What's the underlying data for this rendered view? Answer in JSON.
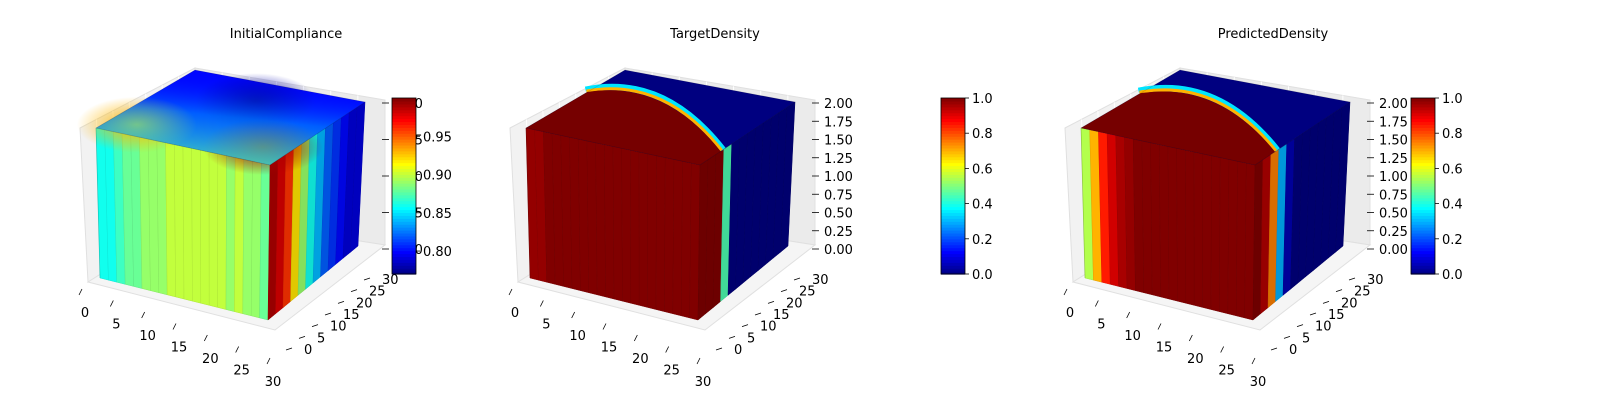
{
  "chart_data": [
    {
      "type": "heatmap",
      "title": "InitialCompliance",
      "colormap": "jet",
      "x_ticks": [
        "0",
        "5",
        "10",
        "15",
        "20",
        "25",
        "30"
      ],
      "y_ticks": [
        "0",
        "5",
        "10",
        "15",
        "20",
        "25",
        "30"
      ],
      "z_ticks": [
        "0.80",
        "0.85",
        "0.90",
        "0.95",
        "1.00"
      ],
      "colorbar": {
        "min": 0.77,
        "max": 1.0,
        "ticks": [
          "0.80",
          "0.85",
          "0.90",
          "0.95"
        ]
      },
      "faces": {
        "front_stripes": [
          0.86,
          0.86,
          0.87,
          0.88,
          0.88,
          0.89,
          0.89,
          0.89,
          0.9,
          0.9,
          0.9,
          0.9,
          0.9,
          0.9,
          0.9,
          0.89,
          0.9,
          0.89,
          0.89,
          0.88
        ],
        "side_stripes": [
          0.99,
          0.98,
          0.96,
          0.92,
          0.89,
          0.86,
          0.84,
          0.82,
          0.81,
          0.8,
          0.79,
          0.79
        ],
        "top_base": 0.8,
        "top_spots": [
          {
            "u": 0.15,
            "v": 0.15,
            "value": 0.93
          },
          {
            "u": 0.85,
            "v": 0.2,
            "value": 0.99
          },
          {
            "u": 0.5,
            "v": 0.75,
            "value": 0.78
          }
        ]
      }
    },
    {
      "type": "heatmap",
      "title": "TargetDensity",
      "colormap": "jet",
      "x_ticks": [
        "0",
        "5",
        "10",
        "15",
        "20",
        "25",
        "30"
      ],
      "y_ticks": [
        "0",
        "5",
        "10",
        "15",
        "20",
        "25",
        "30"
      ],
      "z_ticks": [
        "0.00",
        "0.25",
        "0.50",
        "0.75",
        "1.00",
        "1.25",
        "1.50",
        "1.75",
        "2.00"
      ],
      "colorbar": {
        "min": 0.0,
        "max": 1.0,
        "ticks": [
          "0.0",
          "0.2",
          "0.4",
          "0.6",
          "0.8",
          "1.0"
        ]
      },
      "faces": {
        "front_stripes": [
          0.98,
          0.98,
          1.0,
          1.0,
          1.0,
          1.0,
          1.0,
          1.0,
          1.0,
          1.0,
          1.0,
          1.0,
          1.0,
          1.0,
          1.0,
          1.0,
          1.0,
          1.0,
          1.0,
          1.0
        ],
        "side_stripes": [
          1.0,
          1.0,
          1.0,
          0.45,
          0.0,
          0.0,
          0.0,
          0.0,
          0.0,
          0.0,
          0.0,
          0.0
        ],
        "top_base": 0.0,
        "solid_fraction": 0.62
      }
    },
    {
      "type": "heatmap",
      "title": "PredictedDensity",
      "colormap": "jet",
      "x_ticks": [
        "0",
        "5",
        "10",
        "15",
        "20",
        "25",
        "30"
      ],
      "y_ticks": [
        "0",
        "5",
        "10",
        "15",
        "20",
        "25",
        "30"
      ],
      "z_ticks": [
        "0.00",
        "0.25",
        "0.50",
        "0.75",
        "1.00",
        "1.25",
        "1.50",
        "1.75",
        "2.00"
      ],
      "colorbar": {
        "min": 0.0,
        "max": 1.0,
        "ticks": [
          "0.0",
          "0.2",
          "0.4",
          "0.6",
          "0.8",
          "1.0"
        ]
      },
      "faces": {
        "front_stripes": [
          0.55,
          0.7,
          0.85,
          0.92,
          0.96,
          0.98,
          1.0,
          1.0,
          1.0,
          1.0,
          1.0,
          1.0,
          1.0,
          1.0,
          1.0,
          1.0,
          1.0,
          1.0,
          1.0,
          1.0
        ],
        "side_stripes": [
          1.0,
          0.95,
          0.75,
          0.3,
          0.05,
          0.0,
          0.0,
          0.0,
          0.0,
          0.0,
          0.0,
          0.0
        ],
        "top_base": 0.0,
        "solid_fraction": 0.6
      }
    }
  ]
}
